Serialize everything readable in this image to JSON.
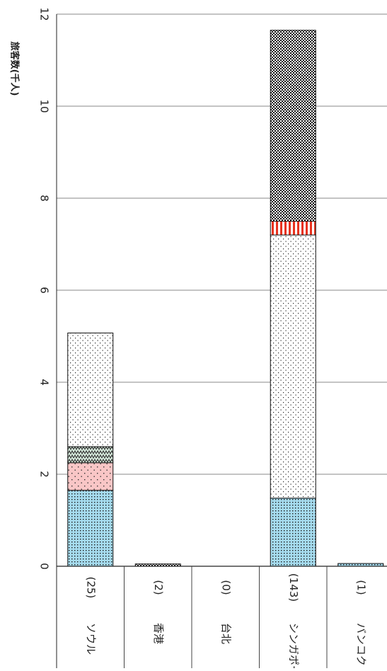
{
  "chart_data": {
    "type": "bar",
    "stacked": true,
    "orientation": "rotated-90-clockwise",
    "ylabel": "旅客数(千人)",
    "yticks": [
      0,
      2,
      4,
      6,
      8,
      10,
      12
    ],
    "ylim": [
      0,
      12
    ],
    "grid": true,
    "categories": [
      {
        "name": "ソウル",
        "count": "(25)"
      },
      {
        "name": "香港",
        "count": "(2)"
      },
      {
        "name": "台北",
        "count": "(0)"
      },
      {
        "name": "シンガポール",
        "count": "(143)"
      },
      {
        "name": "バンコク",
        "count": "(1)"
      }
    ],
    "series": [
      {
        "pattern": "dots",
        "color": "#a6dcef",
        "values": [
          1.65,
          0.0,
          0.0,
          1.48,
          0.06
        ]
      },
      {
        "pattern": "sparse-dots",
        "color": "#f9c6c6",
        "values": [
          0.6,
          0.0,
          0.0,
          0.0,
          0.0
        ]
      },
      {
        "pattern": "zigzag",
        "color": "#d4e8da",
        "values": [
          0.35,
          0.0,
          0.0,
          0.0,
          0.0
        ]
      },
      {
        "pattern": "fine-dots",
        "color": "#ffffff",
        "values": [
          2.47,
          0.0,
          0.0,
          5.72,
          0.0
        ]
      },
      {
        "pattern": "vertical-stripes",
        "color": "#e8321e",
        "values": [
          0.0,
          0.0,
          0.0,
          0.3,
          0.0
        ]
      },
      {
        "pattern": "checker",
        "color": "#222222",
        "values": [
          0.0,
          0.05,
          0.0,
          4.15,
          0.0
        ]
      }
    ]
  }
}
